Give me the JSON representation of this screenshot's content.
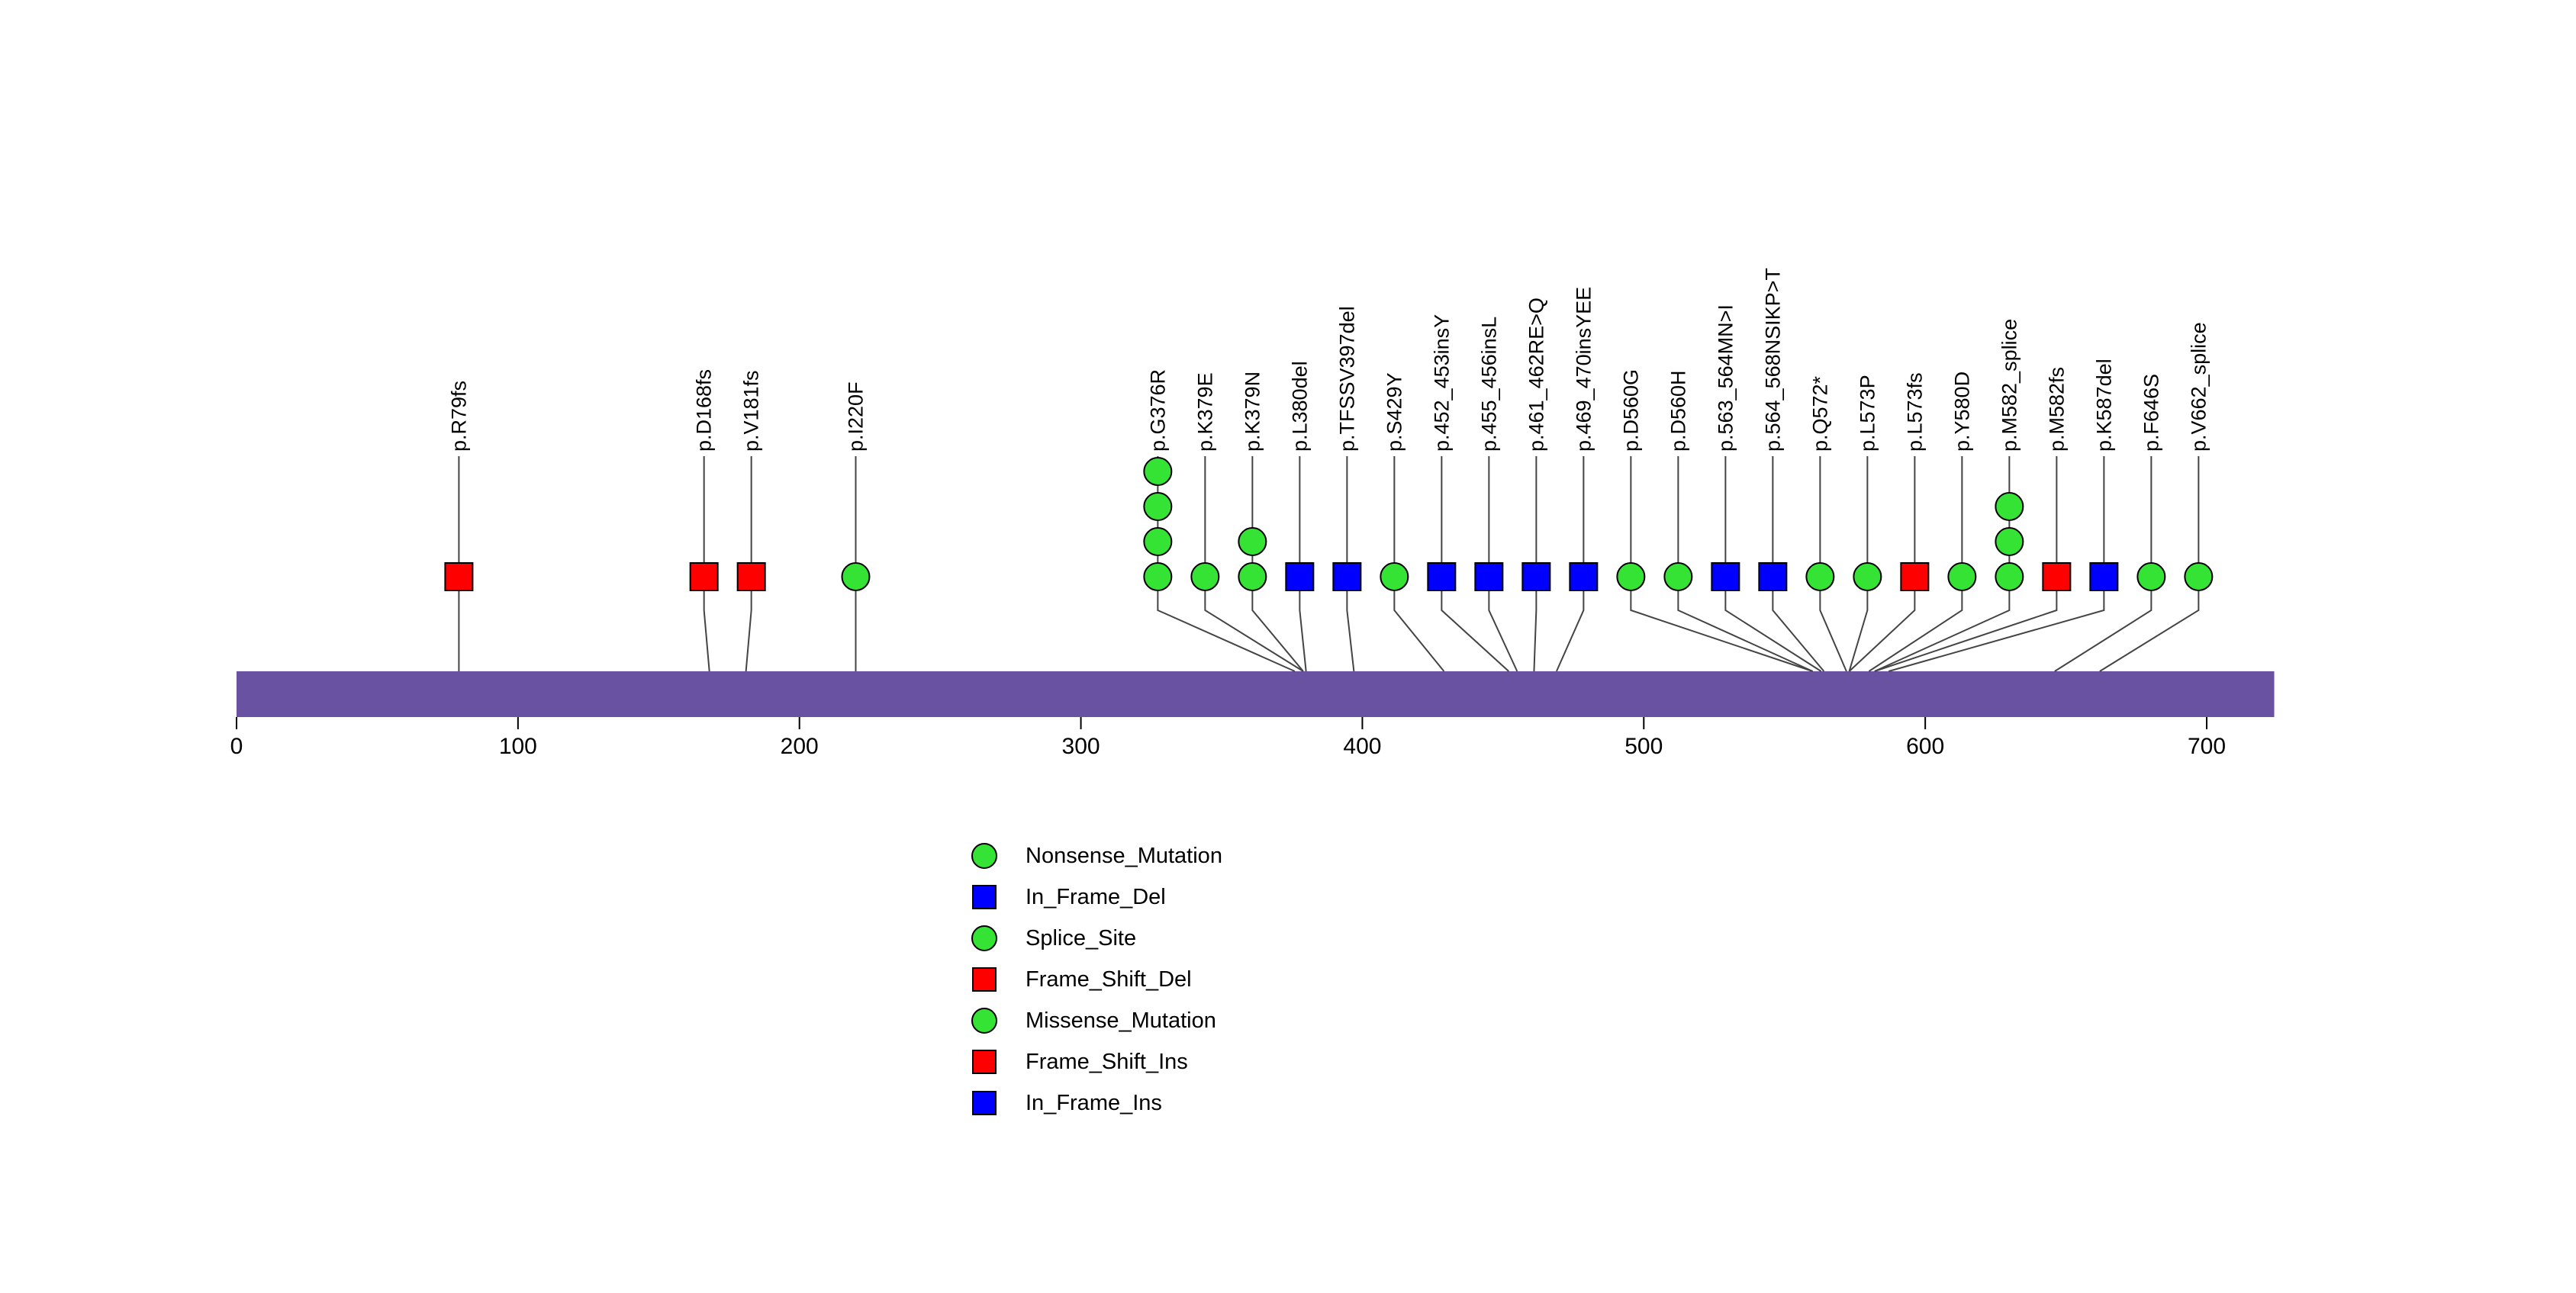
{
  "figure": {
    "background": "#ffffff"
  },
  "chart_data": {
    "type": "lollipop",
    "title": "",
    "xlabel": "",
    "ylabel": "",
    "xlim": [
      0,
      724
    ],
    "x_ticks": [
      0,
      100,
      200,
      300,
      400,
      500,
      600,
      700
    ],
    "grid": false,
    "legend_position": "bottom-left-of-center",
    "gene_bar": {
      "start": 0,
      "end": 724,
      "color": "#6A52A3"
    },
    "marker_colors": {
      "green": "#35E335",
      "red": "#FF0000",
      "blue": "#0000FF"
    },
    "stem_color": "#444444",
    "mutations": [
      {
        "label": "p.R79fs",
        "pos": 79,
        "type": "Frame_Shift_Del",
        "shape": "square",
        "color": "red",
        "count": 1
      },
      {
        "label": "p.D168fs",
        "pos": 168,
        "type": "Frame_Shift_Del",
        "shape": "square",
        "color": "red",
        "count": 1
      },
      {
        "label": "p.V181fs",
        "pos": 181,
        "type": "Frame_Shift_Del",
        "shape": "square",
        "color": "red",
        "count": 1
      },
      {
        "label": "p.I220F",
        "pos": 220,
        "type": "Missense_Mutation",
        "shape": "circle",
        "color": "green",
        "count": 1
      },
      {
        "label": "p.G376R",
        "pos": 376,
        "type": "Missense_Mutation",
        "shape": "circle",
        "color": "green",
        "count": 4
      },
      {
        "label": "p.K379E",
        "pos": 379,
        "type": "Missense_Mutation",
        "shape": "circle",
        "color": "green",
        "count": 1
      },
      {
        "label": "p.K379N",
        "pos": 379,
        "type": "Missense_Mutation",
        "shape": "circle",
        "color": "green",
        "count": 2
      },
      {
        "label": "p.L380del",
        "pos": 380,
        "type": "In_Frame_Del",
        "shape": "square",
        "color": "blue",
        "count": 1
      },
      {
        "label": "p.TFSSV397del",
        "pos": 397,
        "type": "In_Frame_Del",
        "shape": "square",
        "color": "blue",
        "count": 1
      },
      {
        "label": "p.S429Y",
        "pos": 429,
        "type": "Missense_Mutation",
        "shape": "circle",
        "color": "green",
        "count": 1
      },
      {
        "label": "p.452_453insY",
        "pos": 452,
        "type": "In_Frame_Ins",
        "shape": "square",
        "color": "blue",
        "count": 1
      },
      {
        "label": "p.455_456insL",
        "pos": 455,
        "type": "In_Frame_Ins",
        "shape": "square",
        "color": "blue",
        "count": 1
      },
      {
        "label": "p.461_462RE>Q",
        "pos": 461,
        "type": "In_Frame_Del",
        "shape": "square",
        "color": "blue",
        "count": 1
      },
      {
        "label": "p.469_470insYEE",
        "pos": 469,
        "type": "In_Frame_Ins",
        "shape": "square",
        "color": "blue",
        "count": 1
      },
      {
        "label": "p.D560G",
        "pos": 560,
        "type": "Missense_Mutation",
        "shape": "circle",
        "color": "green",
        "count": 1
      },
      {
        "label": "p.D560H",
        "pos": 560,
        "type": "Missense_Mutation",
        "shape": "circle",
        "color": "green",
        "count": 1
      },
      {
        "label": "p.563_564MN>I",
        "pos": 563,
        "type": "In_Frame_Del",
        "shape": "square",
        "color": "blue",
        "count": 1
      },
      {
        "label": "p.564_568NSIKP>T",
        "pos": 564,
        "type": "In_Frame_Del",
        "shape": "square",
        "color": "blue",
        "count": 1
      },
      {
        "label": "p.Q572*",
        "pos": 572,
        "type": "Nonsense_Mutation",
        "shape": "circle",
        "color": "green",
        "count": 1
      },
      {
        "label": "p.L573P",
        "pos": 573,
        "type": "Missense_Mutation",
        "shape": "circle",
        "color": "green",
        "count": 1
      },
      {
        "label": "p.L573fs",
        "pos": 573,
        "type": "Frame_Shift_Del",
        "shape": "square",
        "color": "red",
        "count": 1
      },
      {
        "label": "p.Y580D",
        "pos": 580,
        "type": "Missense_Mutation",
        "shape": "circle",
        "color": "green",
        "count": 1
      },
      {
        "label": "p.M582_splice",
        "pos": 582,
        "type": "Splice_Site",
        "shape": "circle",
        "color": "green",
        "count": 3
      },
      {
        "label": "p.M582fs",
        "pos": 582,
        "type": "Frame_Shift_Ins",
        "shape": "square",
        "color": "red",
        "count": 1
      },
      {
        "label": "p.K587del",
        "pos": 587,
        "type": "In_Frame_Del",
        "shape": "square",
        "color": "blue",
        "count": 1
      },
      {
        "label": "p.F646S",
        "pos": 646,
        "type": "Missense_Mutation",
        "shape": "circle",
        "color": "green",
        "count": 1
      },
      {
        "label": "p.V662_splice",
        "pos": 662,
        "type": "Splice_Site",
        "shape": "circle",
        "color": "green",
        "count": 1
      }
    ],
    "legend": [
      {
        "label": "Nonsense_Mutation",
        "shape": "circle",
        "color": "green"
      },
      {
        "label": "In_Frame_Del",
        "shape": "square",
        "color": "blue"
      },
      {
        "label": "Splice_Site",
        "shape": "circle",
        "color": "green"
      },
      {
        "label": "Frame_Shift_Del",
        "shape": "square",
        "color": "red"
      },
      {
        "label": "Missense_Mutation",
        "shape": "circle",
        "color": "green"
      },
      {
        "label": "Frame_Shift_Ins",
        "shape": "square",
        "color": "red"
      },
      {
        "label": "In_Frame_Ins",
        "shape": "square",
        "color": "blue"
      }
    ]
  }
}
